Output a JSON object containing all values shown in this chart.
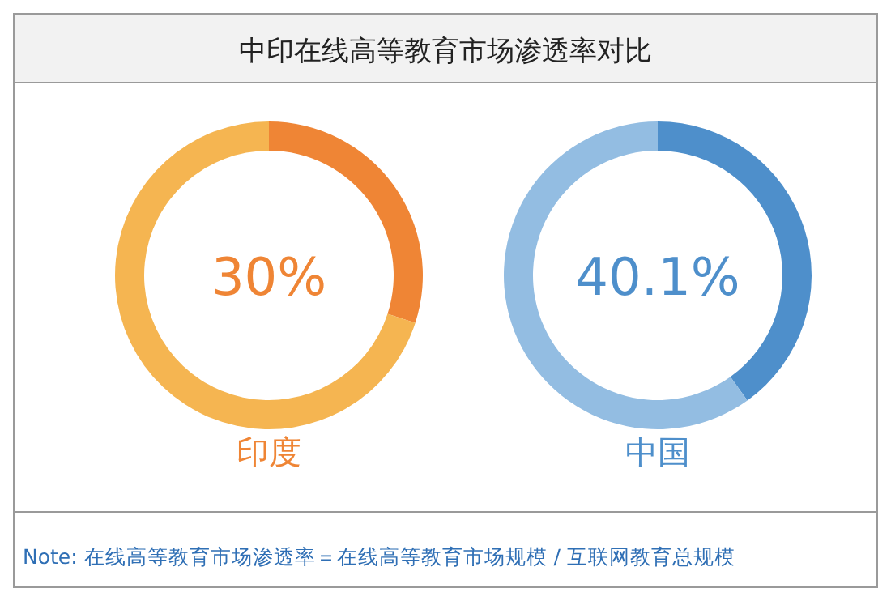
{
  "chart_data": [
    {
      "type": "donut",
      "title": "中印在线高等教育市场渗透率对比",
      "xlabel": "印度",
      "categories": [
        null,
        null
      ],
      "values": [
        30,
        70
      ],
      "colors": [
        "#ef8535",
        "#f5b551"
      ],
      "annotations": [
        "30%"
      ]
    },
    {
      "type": "donut",
      "xlabel": "中国",
      "categories": [
        null,
        null
      ],
      "values": [
        40.1,
        59.9
      ],
      "colors": [
        "#4e8fcb",
        "#93bde2"
      ],
      "annotations": [
        "40.1%",
        "Note: 在线高等教育市场渗透率＝在线高等教育市场规模 / 互联网教育总规模"
      ]
    }
  ]
}
